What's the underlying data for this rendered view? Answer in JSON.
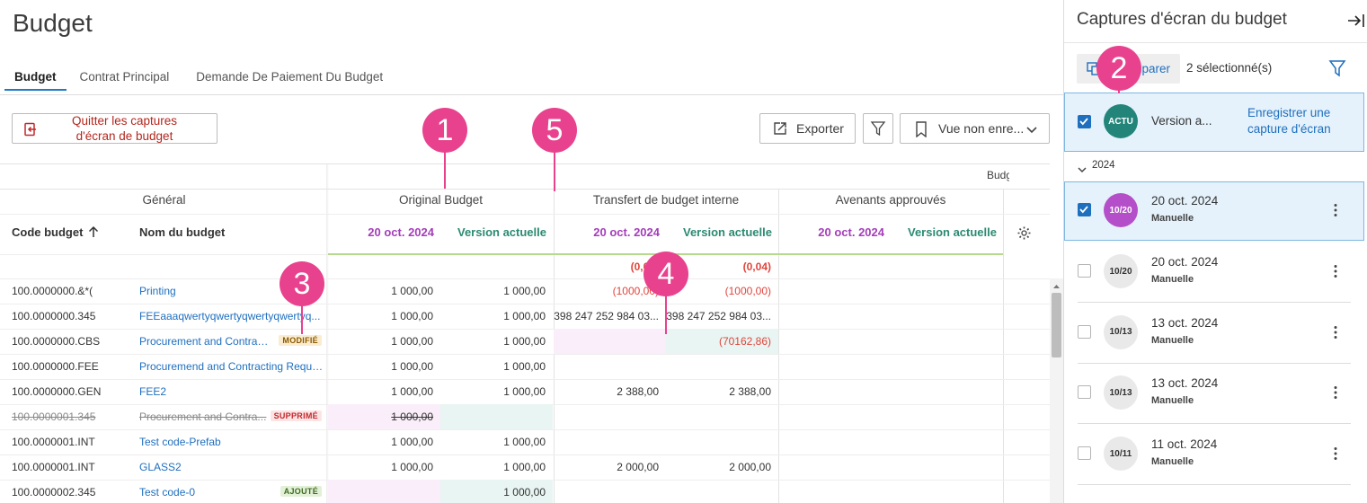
{
  "header": {
    "title": "Budget"
  },
  "tabs": {
    "items": [
      "Budget",
      "Contrat Principal",
      "Demande De Paiement Du Budget"
    ],
    "active": 0
  },
  "toolbar": {
    "exit": "Quitter les captures d'écran de budget",
    "export": "Exporter",
    "view": "Vue non enre..."
  },
  "table": {
    "group_top": "Budget",
    "groups": [
      "Général",
      "Original Budget",
      "Transfert de budget interne",
      "Avenants approuvés"
    ],
    "columns": [
      {
        "label": "Code budget"
      },
      {
        "label": "Nom du budget"
      },
      {
        "label": "20 oct. 2024",
        "color": "#a53dba"
      },
      {
        "label": "Version actuelle",
        "color": "#2b8a72"
      },
      {
        "label": "20 oct. 2024",
        "color": "#a53dba"
      },
      {
        "label": "Version actuelle",
        "color": "#2b8a72"
      },
      {
        "label": "20 oct. 2024",
        "color": "#a53dba"
      },
      {
        "label": "Version actuelle",
        "color": "#2b8a72"
      }
    ],
    "totals": [
      null,
      null,
      {
        "text": "(0,04)",
        "color": "#e0453c"
      },
      {
        "text": "(0,04)",
        "color": "#e0453c"
      },
      null,
      null
    ],
    "rows": [
      {
        "code": "100.0000000.&*(",
        "name": "Printing",
        "cells": [
          "1 000,00",
          "1 000,00",
          {
            "text": "(1000,00)",
            "color": "#e0453c"
          },
          {
            "text": "(1000,00)",
            "color": "#e0453c"
          },
          null,
          null
        ]
      },
      {
        "code": "100.0000000.345",
        "name": "FEEaaaqwertyqwertyqwertyqwertyq...",
        "cells": [
          "1 000,00",
          "1 000,00",
          "398 247 252 984 03...",
          "398 247 252 984 03...",
          null,
          null
        ]
      },
      {
        "code": "100.0000000.CBS",
        "name": "Procurement and Contract...",
        "badge": {
          "label": "MODIFIÉ",
          "color": "#8a5a00",
          "bg": "#fbecd0"
        },
        "cells": [
          "1 000,00",
          "1 000,00",
          {
            "bg": "#f9eef9"
          },
          {
            "text": "(70162,86)",
            "color": "#e0453c",
            "bg": "#e8f5f2"
          },
          null,
          null
        ]
      },
      {
        "code": "100.0000000.FEE",
        "name": "Procuremend and Contracting Requir...",
        "cells": [
          "1 000,00",
          "1 000,00",
          null,
          null,
          null,
          null
        ]
      },
      {
        "code": "100.0000000.GEN",
        "name": "FEE2",
        "cells": [
          "1 000,00",
          "1 000,00",
          "2 388,00",
          "2 388,00",
          null,
          null
        ]
      },
      {
        "code": "100.0000001.345",
        "name": "Procurement and Contra...",
        "struck": true,
        "badge": {
          "label": "SUPPRIMÉ",
          "color": "#c0282d",
          "bg": "#fde4e4"
        },
        "cells": [
          {
            "text": "1 000,00",
            "bg": "#f9eef9"
          },
          {
            "bg": "#e8f5f2"
          },
          null,
          null,
          null,
          null
        ]
      },
      {
        "code": "100.0000001.INT",
        "name": "Test code-Prefab",
        "cells": [
          "1 000,00",
          "1 000,00",
          null,
          null,
          null,
          null
        ]
      },
      {
        "code": "100.0000001.INT",
        "name": "GLASS2",
        "cells": [
          "1 000,00",
          "1 000,00",
          "2 000,00",
          "2 000,00",
          null,
          null
        ]
      },
      {
        "code": "100.0000002.345",
        "name": "Test code-0",
        "badge": {
          "label": "AJOUTÉ",
          "color": "#3d6b1f",
          "bg": "#e3f0d8"
        },
        "cells": [
          {
            "bg": "#f9eef9"
          },
          {
            "text": "1 000,00",
            "bg": "#e8f5f2"
          },
          null,
          null,
          null,
          null
        ]
      }
    ]
  },
  "panel": {
    "title": "Captures d'écran du budget",
    "compare": "Comparer",
    "selected": "2 sélectionné(s)",
    "current": {
      "avatar": "ACTU",
      "avatar_color": "#23857a",
      "label": "Version a...",
      "action": "Enregistrer une capture d'écran",
      "checked": true
    },
    "year": "2024",
    "snapshots": [
      {
        "avatar": "10/20",
        "date": "20 oct. 2024",
        "kind": "Manuelle",
        "checked": true,
        "avatar_color": "#b44fc9"
      },
      {
        "avatar": "10/20",
        "date": "20 oct. 2024",
        "kind": "Manuelle",
        "checked": false,
        "avatar_color": "#e9e9e9"
      },
      {
        "avatar": "10/13",
        "date": "13 oct. 2024",
        "kind": "Manuelle",
        "checked": false,
        "avatar_color": "#e9e9e9"
      },
      {
        "avatar": "10/13",
        "date": "13 oct. 2024",
        "kind": "Manuelle",
        "checked": false,
        "avatar_color": "#e9e9e9"
      },
      {
        "avatar": "10/11",
        "date": "11 oct. 2024",
        "kind": "Manuelle",
        "checked": false,
        "avatar_color": "#e9e9e9"
      }
    ]
  },
  "callouts": [
    "1",
    "5",
    "3",
    "4",
    "2"
  ]
}
